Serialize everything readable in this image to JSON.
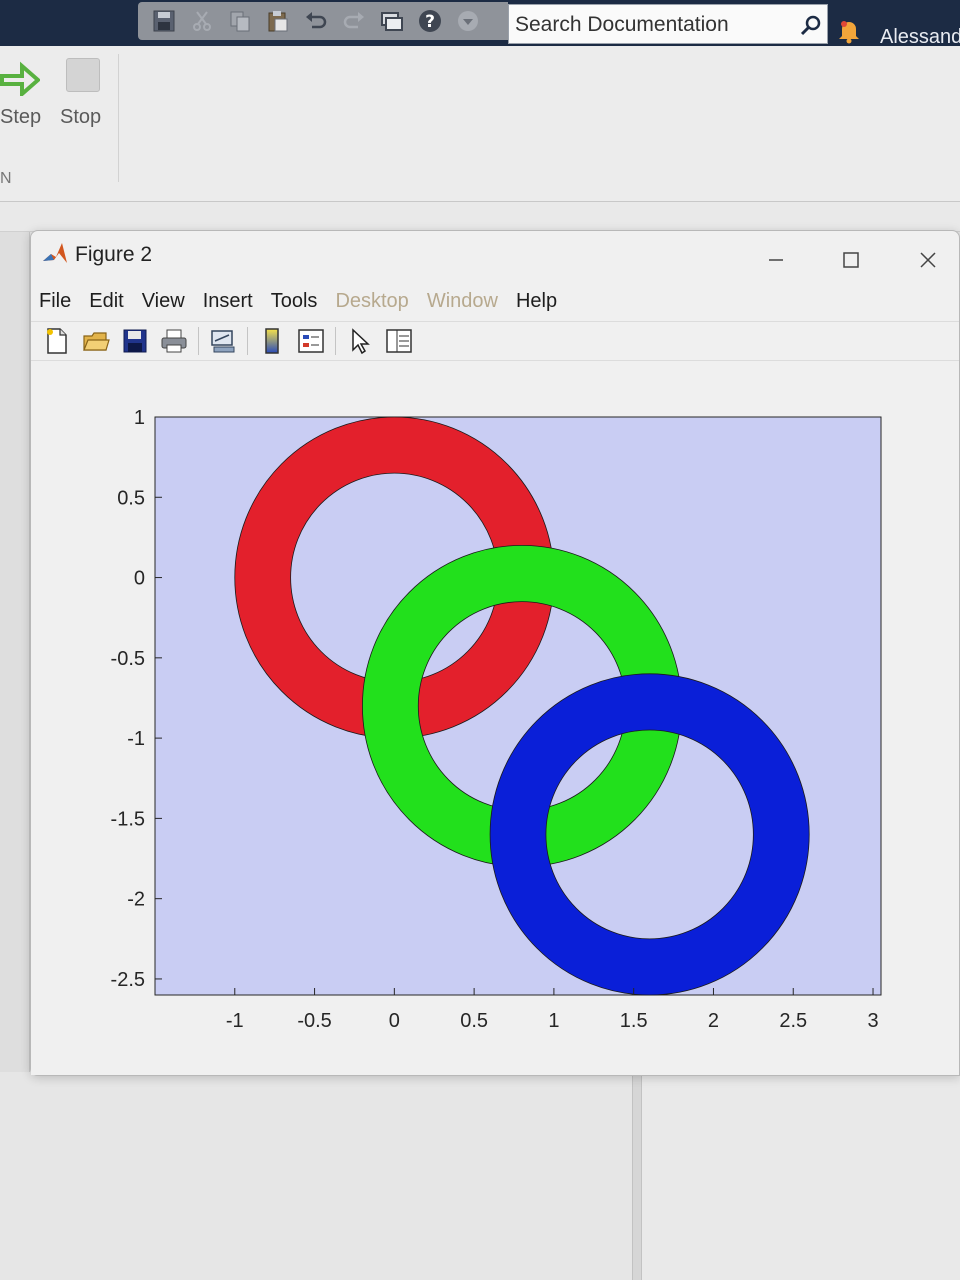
{
  "desktop": {
    "search": {
      "placeholder": "Search Documentation"
    },
    "user_name": "Alessandr",
    "toolstrip": {
      "step_label": "Step",
      "stop_label": "Stop",
      "section_label": "N"
    }
  },
  "figure": {
    "title": "Figure 2",
    "menu": [
      {
        "label": "File"
      },
      {
        "label": "Edit"
      },
      {
        "label": "View"
      },
      {
        "label": "Insert"
      },
      {
        "label": "Tools"
      },
      {
        "label": "Desktop"
      },
      {
        "label": "Window"
      },
      {
        "label": "Help"
      }
    ],
    "toolbar_icons": [
      "new-figure-icon",
      "open-file-icon",
      "save-figure-icon",
      "print-figure-icon",
      "link-plot-icon",
      "insert-colorbar-icon",
      "insert-legend-icon",
      "edit-plot-icon",
      "property-editor-icon"
    ],
    "window_controls": [
      "minimize-icon",
      "maximize-icon",
      "close-icon"
    ]
  },
  "chart_data": {
    "type": "area",
    "title": "",
    "xlabel": "",
    "ylabel": "",
    "xlim": [
      -1.5,
      3.05
    ],
    "ylim": [
      -2.6,
      1.0
    ],
    "x_ticks": [
      "-1",
      "-0.5",
      "0",
      "0.5",
      "1",
      "1.5",
      "2",
      "2.5",
      "3"
    ],
    "y_ticks": [
      "1",
      "0.5",
      "0",
      "-0.5",
      "-1",
      "-1.5",
      "-2",
      "-2.5"
    ],
    "axes_background": "#c9cdf3",
    "grid": false,
    "series": [
      {
        "center": [
          0,
          0
        ],
        "outer_radius": 1.0,
        "inner_radius": 0.65,
        "color": "#e3202c"
      },
      {
        "center": [
          0.8,
          -0.8
        ],
        "outer_radius": 1.0,
        "inner_radius": 0.65,
        "color": "#22e01c"
      },
      {
        "center": [
          1.6,
          -1.6
        ],
        "outer_radius": 1.0,
        "inner_radius": 0.65,
        "color": "#0a1fd8"
      }
    ]
  }
}
